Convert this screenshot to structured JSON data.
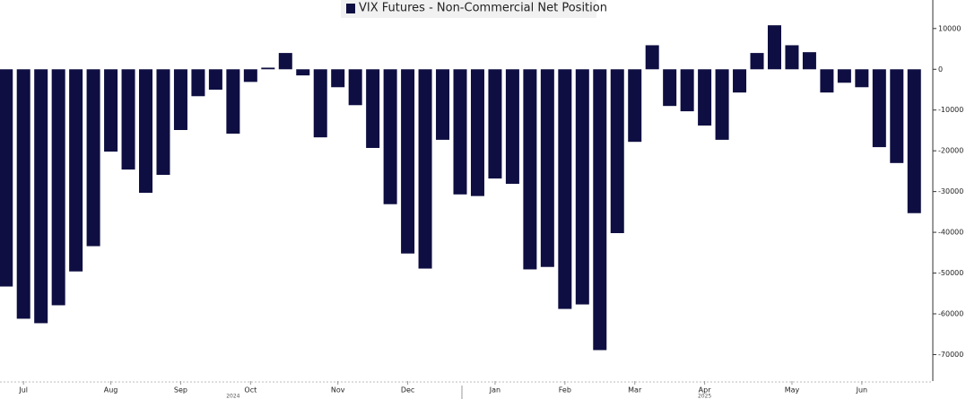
{
  "chart_data": {
    "type": "bar",
    "legend_label": "VIX Futures - Non-Commercial Net Position",
    "color": "#0e0e42",
    "categories": [
      null,
      "Jul",
      null,
      null,
      null,
      null,
      "Aug",
      null,
      null,
      null,
      "Sep",
      null,
      null,
      null,
      "Oct",
      null,
      null,
      null,
      null,
      "Nov",
      null,
      null,
      null,
      "Dec",
      null,
      null,
      null,
      null,
      "Jan",
      null,
      null,
      null,
      "Feb",
      null,
      null,
      null,
      "Mar",
      null,
      null,
      null,
      "Apr",
      null,
      null,
      null,
      null,
      "May",
      null,
      null,
      null,
      "Jun",
      null,
      null,
      null
    ],
    "years": [
      "2024",
      "2025"
    ],
    "values": [
      -53300,
      -61200,
      -62300,
      -57900,
      -49600,
      -43400,
      -20200,
      -24600,
      -30300,
      -25900,
      -14900,
      -6600,
      -5000,
      -15800,
      -3100,
      400,
      4000,
      -1500,
      -16700,
      -4400,
      -8800,
      -19300,
      -33100,
      -45200,
      -48900,
      -17300,
      -30700,
      -31100,
      -26800,
      -28100,
      -49100,
      -48500,
      -58800,
      -57700,
      -68900,
      -40200,
      -17800,
      5900,
      -9000,
      -10300,
      -13800,
      -17300,
      -5700,
      4000,
      10800,
      5900,
      4200,
      -5700,
      -3300,
      -4400,
      -19100,
      -23000,
      -35300
    ],
    "ylim": [
      -76500,
      17000
    ],
    "yticks": [
      10000,
      0,
      -10000,
      -20000,
      -30000,
      -40000,
      -50000,
      -60000,
      -70000
    ]
  }
}
